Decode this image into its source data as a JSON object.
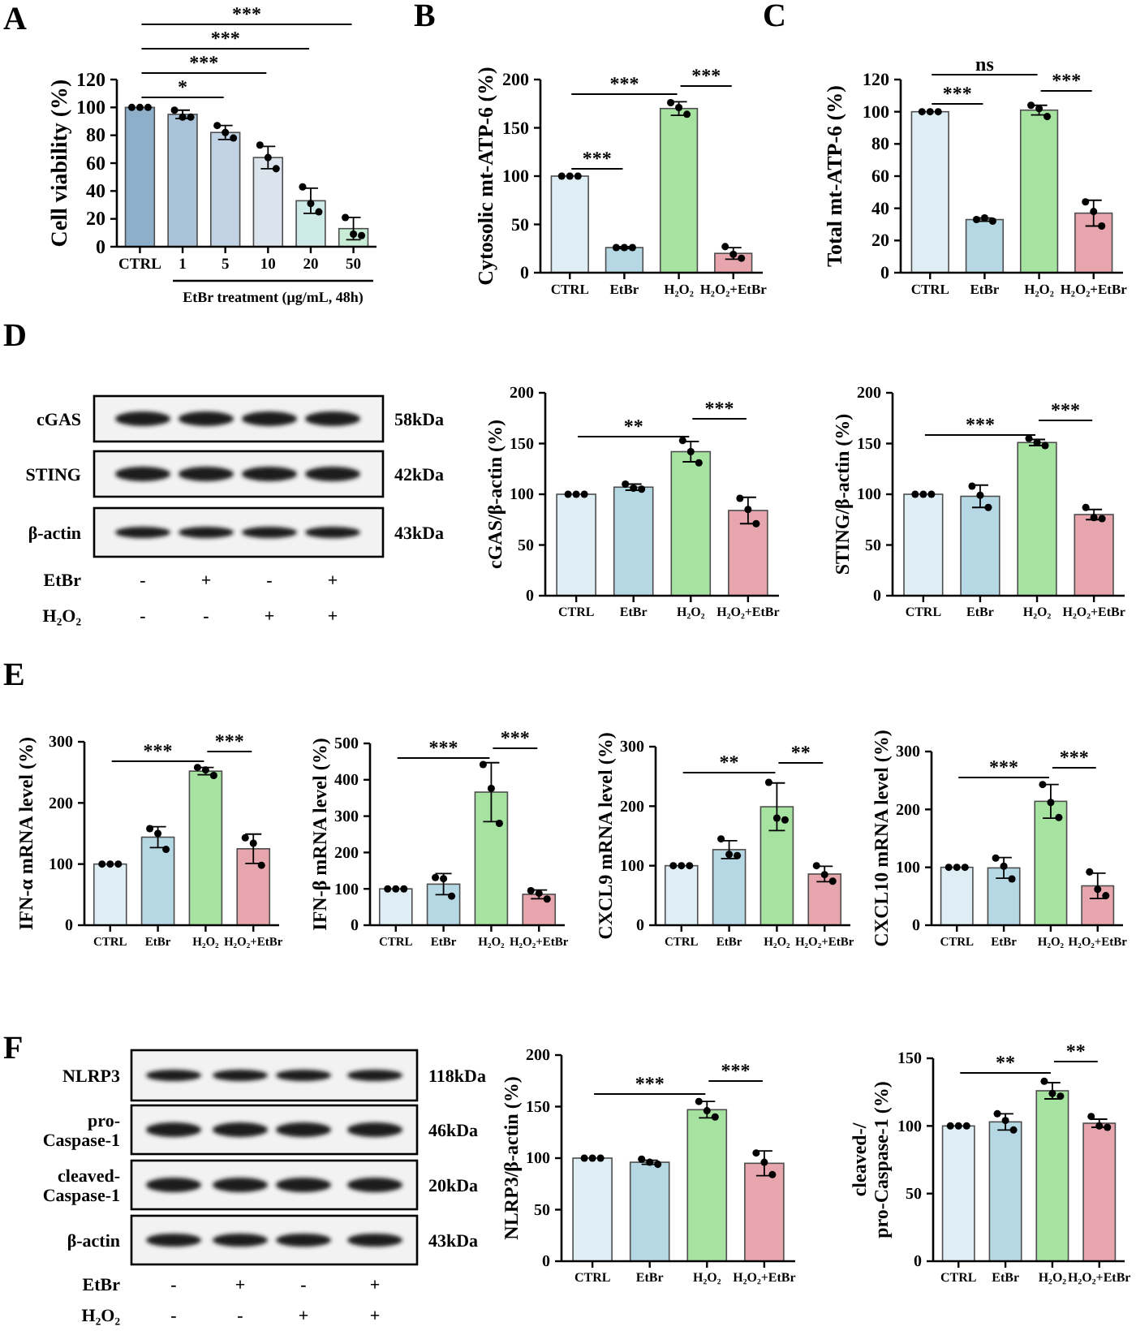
{
  "chart_data": [
    {
      "type": "bar",
      "title": "A",
      "ylabel": "Cell viability (%)",
      "xlabel": "EtBr treatment (μg/mL, 48h)",
      "categories": [
        "CTRL",
        "1",
        "5",
        "10",
        "20",
        "50"
      ],
      "series": [
        {
          "type": "bar",
          "values": [
            100,
            95,
            82,
            64,
            33,
            13
          ],
          "errors": [
            null,
            3,
            5,
            8,
            9,
            8
          ],
          "colors": [
            "#8eafca",
            "#a9c2d8",
            "#c0d2e3",
            "#dbe3ed",
            "#cdeae8",
            "#c8ecd5"
          ]
        },
        {
          "type": "scatter",
          "x": [
            "CTRL",
            "CTRL",
            "CTRL",
            "1",
            "1",
            "1",
            "5",
            "5",
            "5",
            "10",
            "10",
            "10",
            "20",
            "20",
            "20",
            "50",
            "50",
            "50"
          ],
          "values": [
            100,
            100,
            100,
            98,
            93,
            93,
            87,
            82,
            78,
            73,
            64,
            56,
            43,
            31,
            25,
            21,
            9,
            8
          ],
          "color": "#000000",
          "marker": "circle"
        }
      ],
      "ylim": [
        0,
        120
      ],
      "yticks": [
        0,
        20,
        40,
        60,
        80,
        100,
        120
      ],
      "annotations": [
        "***",
        "***",
        "***",
        "*"
      ]
    },
    {
      "type": "bar",
      "title": "B",
      "ylabel": "Cytosolic mt-ATP-6 (%)",
      "categories": [
        "CTRL",
        "EtBr",
        "H₂O₂",
        "H₂O₂+EtBr"
      ],
      "series": [
        {
          "type": "bar",
          "values": [
            100,
            26,
            170,
            20
          ],
          "errors": [
            null,
            1,
            7,
            6
          ],
          "colors": [
            "#deeef4",
            "#b5d8e4",
            "#a6e3a1",
            "#e7a6ad"
          ]
        },
        {
          "type": "scatter",
          "x": [
            "CTRL",
            "CTRL",
            "CTRL",
            "EtBr",
            "EtBr",
            "EtBr",
            "H₂O₂",
            "H₂O₂",
            "H₂O₂",
            "H₂O₂+EtBr",
            "H₂O₂+EtBr",
            "H₂O₂+EtBr"
          ],
          "values": [
            100,
            100,
            100,
            26,
            26,
            26,
            176,
            171,
            164,
            27,
            19,
            15
          ],
          "color": "#000000",
          "marker": "circle"
        }
      ],
      "ylim": [
        0,
        200
      ],
      "yticks": [
        0,
        50,
        100,
        150,
        200
      ],
      "annotations": [
        "***",
        "***",
        "***"
      ]
    },
    {
      "type": "bar",
      "title": "C",
      "ylabel": "Total mt-ATP-6 (%)",
      "categories": [
        "CTRL",
        "EtBr",
        "H₂O₂",
        "H₂O₂+EtBr"
      ],
      "series": [
        {
          "type": "bar",
          "values": [
            100,
            33,
            101,
            37
          ],
          "errors": [
            null,
            1,
            3,
            8
          ],
          "colors": [
            "#deeef4",
            "#b5d8e4",
            "#a6e3a1",
            "#e7a6ad"
          ]
        },
        {
          "type": "scatter",
          "x": [
            "CTRL",
            "CTRL",
            "CTRL",
            "EtBr",
            "EtBr",
            "EtBr",
            "H₂O₂",
            "H₂O₂",
            "H₂O₂",
            "H₂O₂+EtBr",
            "H₂O₂+EtBr",
            "H₂O₂+EtBr"
          ],
          "values": [
            100,
            100,
            100,
            33,
            34,
            32,
            104,
            102,
            97,
            44,
            38,
            29
          ],
          "color": "#000000",
          "marker": "circle"
        }
      ],
      "ylim": [
        0,
        120
      ],
      "yticks": [
        0,
        20,
        40,
        60,
        80,
        100,
        120
      ],
      "annotations": [
        "ns",
        "***",
        "***"
      ]
    },
    {
      "type": "other",
      "title": "D",
      "annotations": [
        "cGAS",
        "58kDa",
        "STING",
        "42kDa",
        "β-actin",
        "43kDa",
        "EtBr",
        "-",
        "+",
        "-",
        "+",
        "H₂O₂",
        "-",
        "-",
        "+",
        "+"
      ]
    },
    {
      "type": "bar",
      "ylabel": "cGAS/β-actin (%)",
      "categories": [
        "CTRL",
        "EtBr",
        "H₂O₂",
        "H₂O₂+EtBr"
      ],
      "series": [
        {
          "type": "bar",
          "values": [
            100,
            107,
            142,
            84
          ],
          "errors": [
            null,
            3,
            10,
            13
          ],
          "colors": [
            "#deeef4",
            "#b5d8e4",
            "#a6e3a1",
            "#e7a6ad"
          ]
        },
        {
          "type": "scatter",
          "x": [
            "CTRL",
            "CTRL",
            "CTRL",
            "EtBr",
            "EtBr",
            "EtBr",
            "H₂O₂",
            "H₂O₂",
            "H₂O₂",
            "H₂O₂+EtBr",
            "H₂O₂+EtBr",
            "H₂O₂+EtBr"
          ],
          "values": [
            100,
            100,
            100,
            110,
            106,
            105,
            153,
            142,
            131,
            96,
            85,
            71
          ],
          "color": "#000000",
          "marker": "circle"
        }
      ],
      "ylim": [
        0,
        200
      ],
      "yticks": [
        0,
        50,
        100,
        150,
        200
      ],
      "annotations": [
        "**",
        "***"
      ]
    },
    {
      "type": "bar",
      "ylabel": "STING/β-actin (%)",
      "categories": [
        "CTRL",
        "EtBr",
        "H₂O₂",
        "H₂O₂+EtBr"
      ],
      "series": [
        {
          "type": "bar",
          "values": [
            100,
            98,
            151,
            80
          ],
          "errors": [
            null,
            11,
            3,
            5
          ],
          "colors": [
            "#deeef4",
            "#b5d8e4",
            "#a6e3a1",
            "#e7a6ad"
          ]
        },
        {
          "type": "scatter",
          "x": [
            "CTRL",
            "CTRL",
            "CTRL",
            "EtBr",
            "EtBr",
            "EtBr",
            "H₂O₂",
            "H₂O₂",
            "H₂O₂",
            "H₂O₂+EtBr",
            "H₂O₂+EtBr",
            "H₂O₂+EtBr"
          ],
          "values": [
            100,
            100,
            100,
            108,
            99,
            87,
            155,
            151,
            148,
            87,
            77,
            76
          ],
          "color": "#000000",
          "marker": "circle"
        }
      ],
      "ylim": [
        0,
        200
      ],
      "yticks": [
        0,
        50,
        100,
        150,
        200
      ],
      "annotations": [
        "***",
        "***"
      ]
    },
    {
      "type": "bar",
      "title": "E",
      "ylabel": "IFN-α mRNA level (%)",
      "categories": [
        "CTRL",
        "EtBr",
        "H₂O₂",
        "H₂O₂+EtBr"
      ],
      "series": [
        {
          "type": "bar",
          "values": [
            100,
            144,
            252,
            125
          ],
          "errors": [
            null,
            17,
            6,
            24
          ],
          "colors": [
            "#deeef4",
            "#b5d8e4",
            "#a6e3a1",
            "#e7a6ad"
          ]
        },
        {
          "type": "scatter",
          "x": [
            "CTRL",
            "CTRL",
            "CTRL",
            "EtBr",
            "EtBr",
            "EtBr",
            "H₂O₂",
            "H₂O₂",
            "H₂O₂",
            "H₂O₂+EtBr",
            "H₂O₂+EtBr",
            "H₂O₂+EtBr"
          ],
          "values": [
            100,
            100,
            100,
            158,
            150,
            124,
            258,
            254,
            245,
            143,
            134,
            98
          ],
          "color": "#000000",
          "marker": "circle"
        }
      ],
      "ylim": [
        0,
        300
      ],
      "yticks": [
        0,
        100,
        200,
        300
      ],
      "annotations": [
        "***",
        "***"
      ]
    },
    {
      "type": "bar",
      "ylabel": "IFN-β mRNA level (%)",
      "categories": [
        "CTRL",
        "EtBr",
        "H₂O₂",
        "H₂O₂+EtBr"
      ],
      "series": [
        {
          "type": "bar",
          "values": [
            100,
            113,
            366,
            85
          ],
          "errors": [
            null,
            29,
            81,
            12
          ],
          "colors": [
            "#deeef4",
            "#b5d8e4",
            "#a6e3a1",
            "#e7a6ad"
          ]
        },
        {
          "type": "scatter",
          "x": [
            "CTRL",
            "CTRL",
            "CTRL",
            "EtBr",
            "EtBr",
            "EtBr",
            "H₂O₂",
            "H₂O₂",
            "H₂O₂",
            "H₂O₂+EtBr",
            "H₂O₂+EtBr",
            "H₂O₂+EtBr"
          ],
          "values": [
            100,
            100,
            100,
            131,
            128,
            80,
            442,
            376,
            280,
            95,
            88,
            72
          ],
          "color": "#000000",
          "marker": "circle"
        }
      ],
      "ylim": [
        0,
        500
      ],
      "yticks": [
        0,
        100,
        200,
        300,
        400,
        500
      ],
      "annotations": [
        "***",
        "***"
      ]
    },
    {
      "type": "bar",
      "ylabel": "CXCL9 mRNA level (%)",
      "categories": [
        "CTRL",
        "EtBr",
        "H₂O₂",
        "H₂O₂+EtBr"
      ],
      "series": [
        {
          "type": "bar",
          "values": [
            100,
            127,
            199,
            86
          ],
          "errors": [
            null,
            15,
            40,
            13
          ],
          "colors": [
            "#deeef4",
            "#b5d8e4",
            "#a6e3a1",
            "#e7a6ad"
          ]
        },
        {
          "type": "scatter",
          "x": [
            "CTRL",
            "CTRL",
            "CTRL",
            "EtBr",
            "EtBr",
            "EtBr",
            "H₂O₂",
            "H₂O₂",
            "H₂O₂",
            "H₂O₂+EtBr",
            "H₂O₂+EtBr",
            "H₂O₂+EtBr"
          ],
          "values": [
            100,
            100,
            100,
            145,
            119,
            117,
            240,
            180,
            177,
            100,
            85,
            74
          ],
          "color": "#000000",
          "marker": "circle"
        }
      ],
      "ylim": [
        0,
        300
      ],
      "yticks": [
        0,
        100,
        200,
        300
      ],
      "annotations": [
        "**",
        "**"
      ]
    },
    {
      "type": "bar",
      "ylabel": "CXCL10 mRNA level (%)",
      "categories": [
        "CTRL",
        "EtBr",
        "H₂O₂",
        "H₂O₂+EtBr"
      ],
      "series": [
        {
          "type": "bar",
          "values": [
            100,
            99,
            214,
            68
          ],
          "errors": [
            null,
            18,
            29,
            22
          ],
          "colors": [
            "#deeef4",
            "#b5d8e4",
            "#a6e3a1",
            "#e7a6ad"
          ]
        },
        {
          "type": "scatter",
          "x": [
            "CTRL",
            "CTRL",
            "CTRL",
            "EtBr",
            "EtBr",
            "EtBr",
            "H₂O₂",
            "H₂O₂",
            "H₂O₂",
            "H₂O₂+EtBr",
            "H₂O₂+EtBr",
            "H₂O₂+EtBr"
          ],
          "values": [
            100,
            100,
            100,
            116,
            102,
            80,
            243,
            212,
            186,
            92,
            62,
            51
          ],
          "color": "#000000",
          "marker": "circle"
        }
      ],
      "ylim": [
        0,
        300
      ],
      "yticks": [
        0,
        100,
        200,
        300
      ],
      "annotations": [
        "***",
        "***"
      ]
    },
    {
      "type": "other",
      "title": "F",
      "annotations": [
        "NLRP3",
        "118kDa",
        "pro-\nCaspase-1",
        "46kDa",
        "cleaved-\nCaspase-1",
        "20kDa",
        "β-actin",
        "43kDa",
        "EtBr",
        "-",
        "+",
        "-",
        "+",
        "H₂O₂",
        "-",
        "-",
        "+",
        "+"
      ]
    },
    {
      "type": "bar",
      "ylabel": "NLRP3/β-actin (%)",
      "categories": [
        "CTRL",
        "EtBr",
        "H₂O₂",
        "H₂O₂+EtBr"
      ],
      "series": [
        {
          "type": "bar",
          "values": [
            100,
            96,
            147,
            95
          ],
          "errors": [
            null,
            2,
            8,
            12
          ],
          "colors": [
            "#deeef4",
            "#b5d8e4",
            "#a6e3a1",
            "#e7a6ad"
          ]
        },
        {
          "type": "scatter",
          "x": [
            "CTRL",
            "CTRL",
            "CTRL",
            "EtBr",
            "EtBr",
            "EtBr",
            "H₂O₂",
            "H₂O₂",
            "H₂O₂",
            "H₂O₂+EtBr",
            "H₂O₂+EtBr",
            "H₂O₂+EtBr"
          ],
          "values": [
            100,
            100,
            100,
            99,
            96,
            94,
            155,
            146,
            140,
            105,
            96,
            84
          ],
          "color": "#000000",
          "marker": "circle"
        }
      ],
      "ylim": [
        0,
        200
      ],
      "yticks": [
        0,
        50,
        100,
        150,
        200
      ],
      "annotations": [
        "***",
        "***"
      ]
    },
    {
      "type": "bar",
      "ylabel": "cleaved-/\npro-Caspase-1 (%)",
      "categories": [
        "CTRL",
        "EtBr",
        "H₂O₂",
        "H₂O₂+EtBr"
      ],
      "series": [
        {
          "type": "bar",
          "values": [
            100,
            103,
            126,
            102
          ],
          "errors": [
            null,
            6,
            6,
            3
          ],
          "colors": [
            "#deeef4",
            "#b5d8e4",
            "#a6e3a1",
            "#e7a6ad"
          ]
        },
        {
          "type": "scatter",
          "x": [
            "CTRL",
            "CTRL",
            "CTRL",
            "EtBr",
            "EtBr",
            "EtBr",
            "H₂O₂",
            "H₂O₂",
            "H₂O₂",
            "H₂O₂+EtBr",
            "H₂O₂+EtBr",
            "H₂O₂+EtBr"
          ],
          "values": [
            100,
            100,
            100,
            109,
            104,
            97,
            133,
            124,
            122,
            107,
            100,
            99
          ],
          "color": "#000000",
          "marker": "circle"
        }
      ],
      "ylim": [
        0,
        150
      ],
      "yticks": [
        0,
        50,
        100,
        150
      ],
      "annotations": [
        "**",
        "**"
      ]
    }
  ]
}
